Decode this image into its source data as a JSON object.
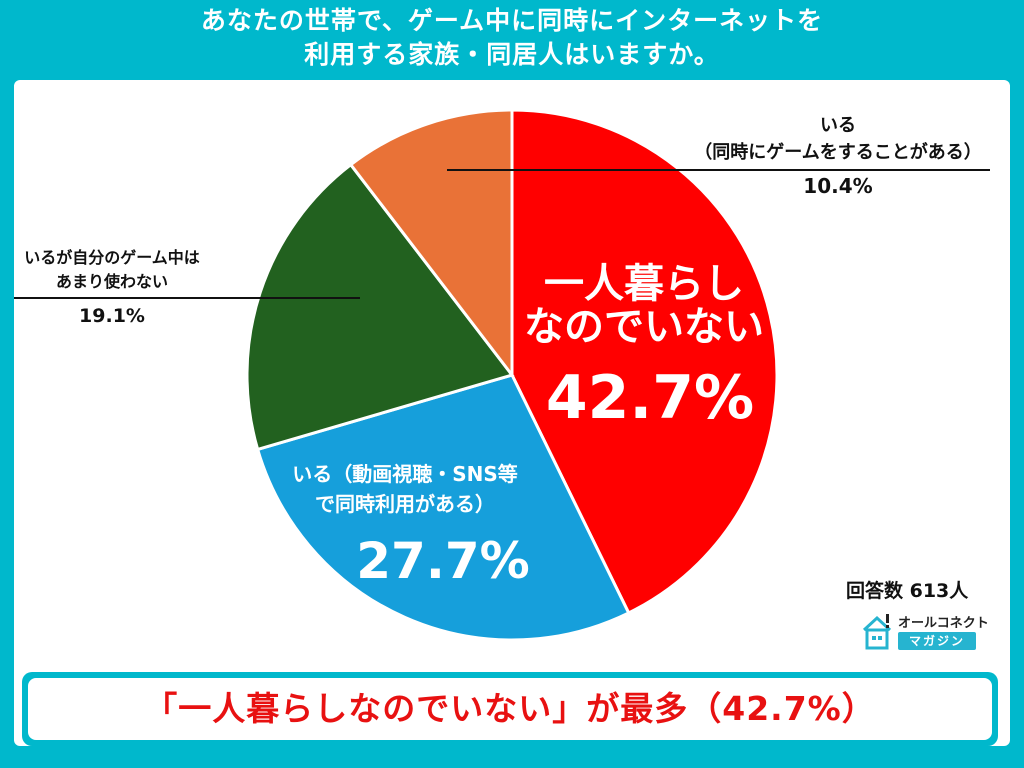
{
  "header": {
    "title_line1": "あなたの世帯で、ゲーム中に同時にインターネットを",
    "title_line2": "利用する家族・同居人はいますか。"
  },
  "chart_data": {
    "type": "pie",
    "start_angle": "12 o'clock, clockwise",
    "slices": [
      {
        "label_lines": [
          "一人暮らし",
          "なのでいない"
        ],
        "value": 42.7,
        "value_label": "42.7%",
        "color": "#ff0000"
      },
      {
        "label_lines": [
          "いる（動画視聴・SNS等",
          "で同時利用がある）"
        ],
        "value": 27.7,
        "value_label": "27.7%",
        "color": "#169fdb"
      },
      {
        "label_lines": [
          "いるが自分のゲーム中は",
          "あまり使わない"
        ],
        "value": 19.1,
        "value_label": "19.1%",
        "color": "#22611f"
      },
      {
        "label_lines": [
          "いる",
          "（同時にゲームをすることがある）"
        ],
        "value": 10.4,
        "value_label": "10.4%",
        "color": "#e97237"
      }
    ]
  },
  "respondents": "回答数 613人",
  "logo": {
    "brand": "オールコネクト",
    "sub": "マガジン"
  },
  "banner": {
    "text": "「一人暮らしなのでいない」が最多（42.7%）"
  }
}
